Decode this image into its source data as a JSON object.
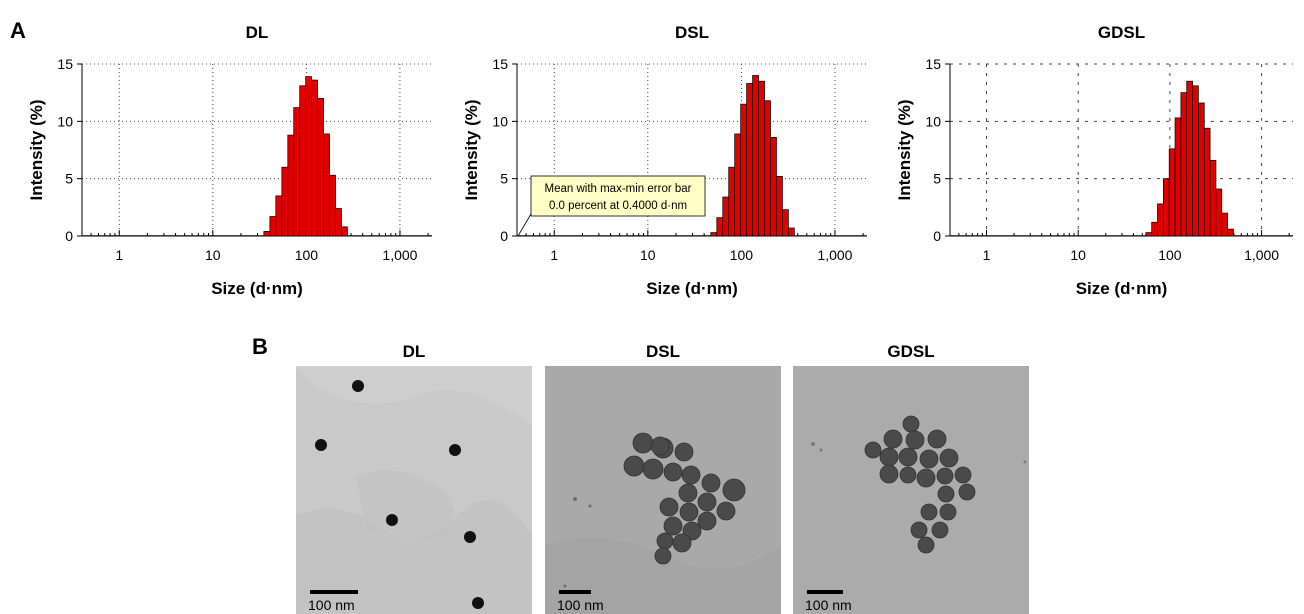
{
  "panel_a": {
    "letter": "A",
    "charts": [
      {
        "title": "DL"
      },
      {
        "title": "DSL",
        "annotation": {
          "line1": "Mean with max-min error bar",
          "line2": "0.0 percent at 0.4000 d·nm"
        }
      },
      {
        "title": "GDSL"
      }
    ]
  },
  "chart_data": [
    {
      "type": "bar",
      "title": "DL",
      "xlabel": "Size (d·nm)",
      "ylabel": "Intensity (%)",
      "x_scale": "log",
      "xlim": [
        0.4,
        2200
      ],
      "ylim": [
        0,
        15
      ],
      "x_ticks": [
        "1",
        "10",
        "100",
        "1,000"
      ],
      "y_ticks": [
        "0",
        "5",
        "10",
        "15"
      ],
      "grid": "dotted",
      "color": "#e00000",
      "x": [
        37.8,
        43.8,
        50.7,
        58.8,
        68.1,
        78.8,
        91.3,
        105.7,
        122.4,
        141.8,
        164.2,
        190.1,
        220.2,
        255
      ],
      "values": [
        0.4,
        1.7,
        3.5,
        6.0,
        8.8,
        11.2,
        13.1,
        13.9,
        13.6,
        12.0,
        8.9,
        5.3,
        2.4,
        0.8
      ]
    },
    {
      "type": "bar",
      "title": "DSL",
      "xlabel": "Size (d·nm)",
      "ylabel": "Intensity (%)",
      "x_scale": "log",
      "xlim": [
        0.4,
        2200
      ],
      "ylim": [
        0,
        15
      ],
      "x_ticks": [
        "1",
        "10",
        "100",
        "1,000"
      ],
      "y_ticks": [
        "0",
        "5",
        "10",
        "15"
      ],
      "grid": "dotted",
      "color": "#e00000",
      "x": [
        50.7,
        58.8,
        68.1,
        78.8,
        91.3,
        105.7,
        122.4,
        141.8,
        164.2,
        190.1,
        220.2,
        255,
        295.3,
        342
      ],
      "values": [
        0.3,
        1.6,
        3.4,
        6.0,
        8.9,
        11.5,
        13.3,
        14.0,
        13.5,
        11.8,
        8.6,
        5.2,
        2.3,
        0.7
      ]
    },
    {
      "type": "bar",
      "title": "GDSL",
      "xlabel": "Size (d·nm)",
      "ylabel": "Intensity (%)",
      "x_scale": "log",
      "xlim": [
        0.4,
        2200
      ],
      "ylim": [
        0,
        15
      ],
      "x_ticks": [
        "1",
        "10",
        "100",
        "1,000"
      ],
      "y_ticks": [
        "0",
        "5",
        "10",
        "15"
      ],
      "grid": "dashed",
      "color": "#e00000",
      "x": [
        58.8,
        68.1,
        78.8,
        91.3,
        105.7,
        122.4,
        141.8,
        164.2,
        190.1,
        220.2,
        255,
        295.3,
        342,
        396.1,
        458.7
      ],
      "values": [
        0.3,
        1.2,
        2.8,
        5.0,
        7.6,
        10.3,
        12.5,
        13.5,
        13.1,
        11.6,
        9.4,
        6.6,
        4.1,
        2.0,
        0.6
      ]
    }
  ],
  "panel_b": {
    "letter": "B",
    "images": [
      {
        "title": "DL",
        "scale_label": "100 nm"
      },
      {
        "title": "DSL",
        "scale_label": "100 nm"
      },
      {
        "title": "GDSL",
        "scale_label": "100 nm"
      }
    ]
  }
}
